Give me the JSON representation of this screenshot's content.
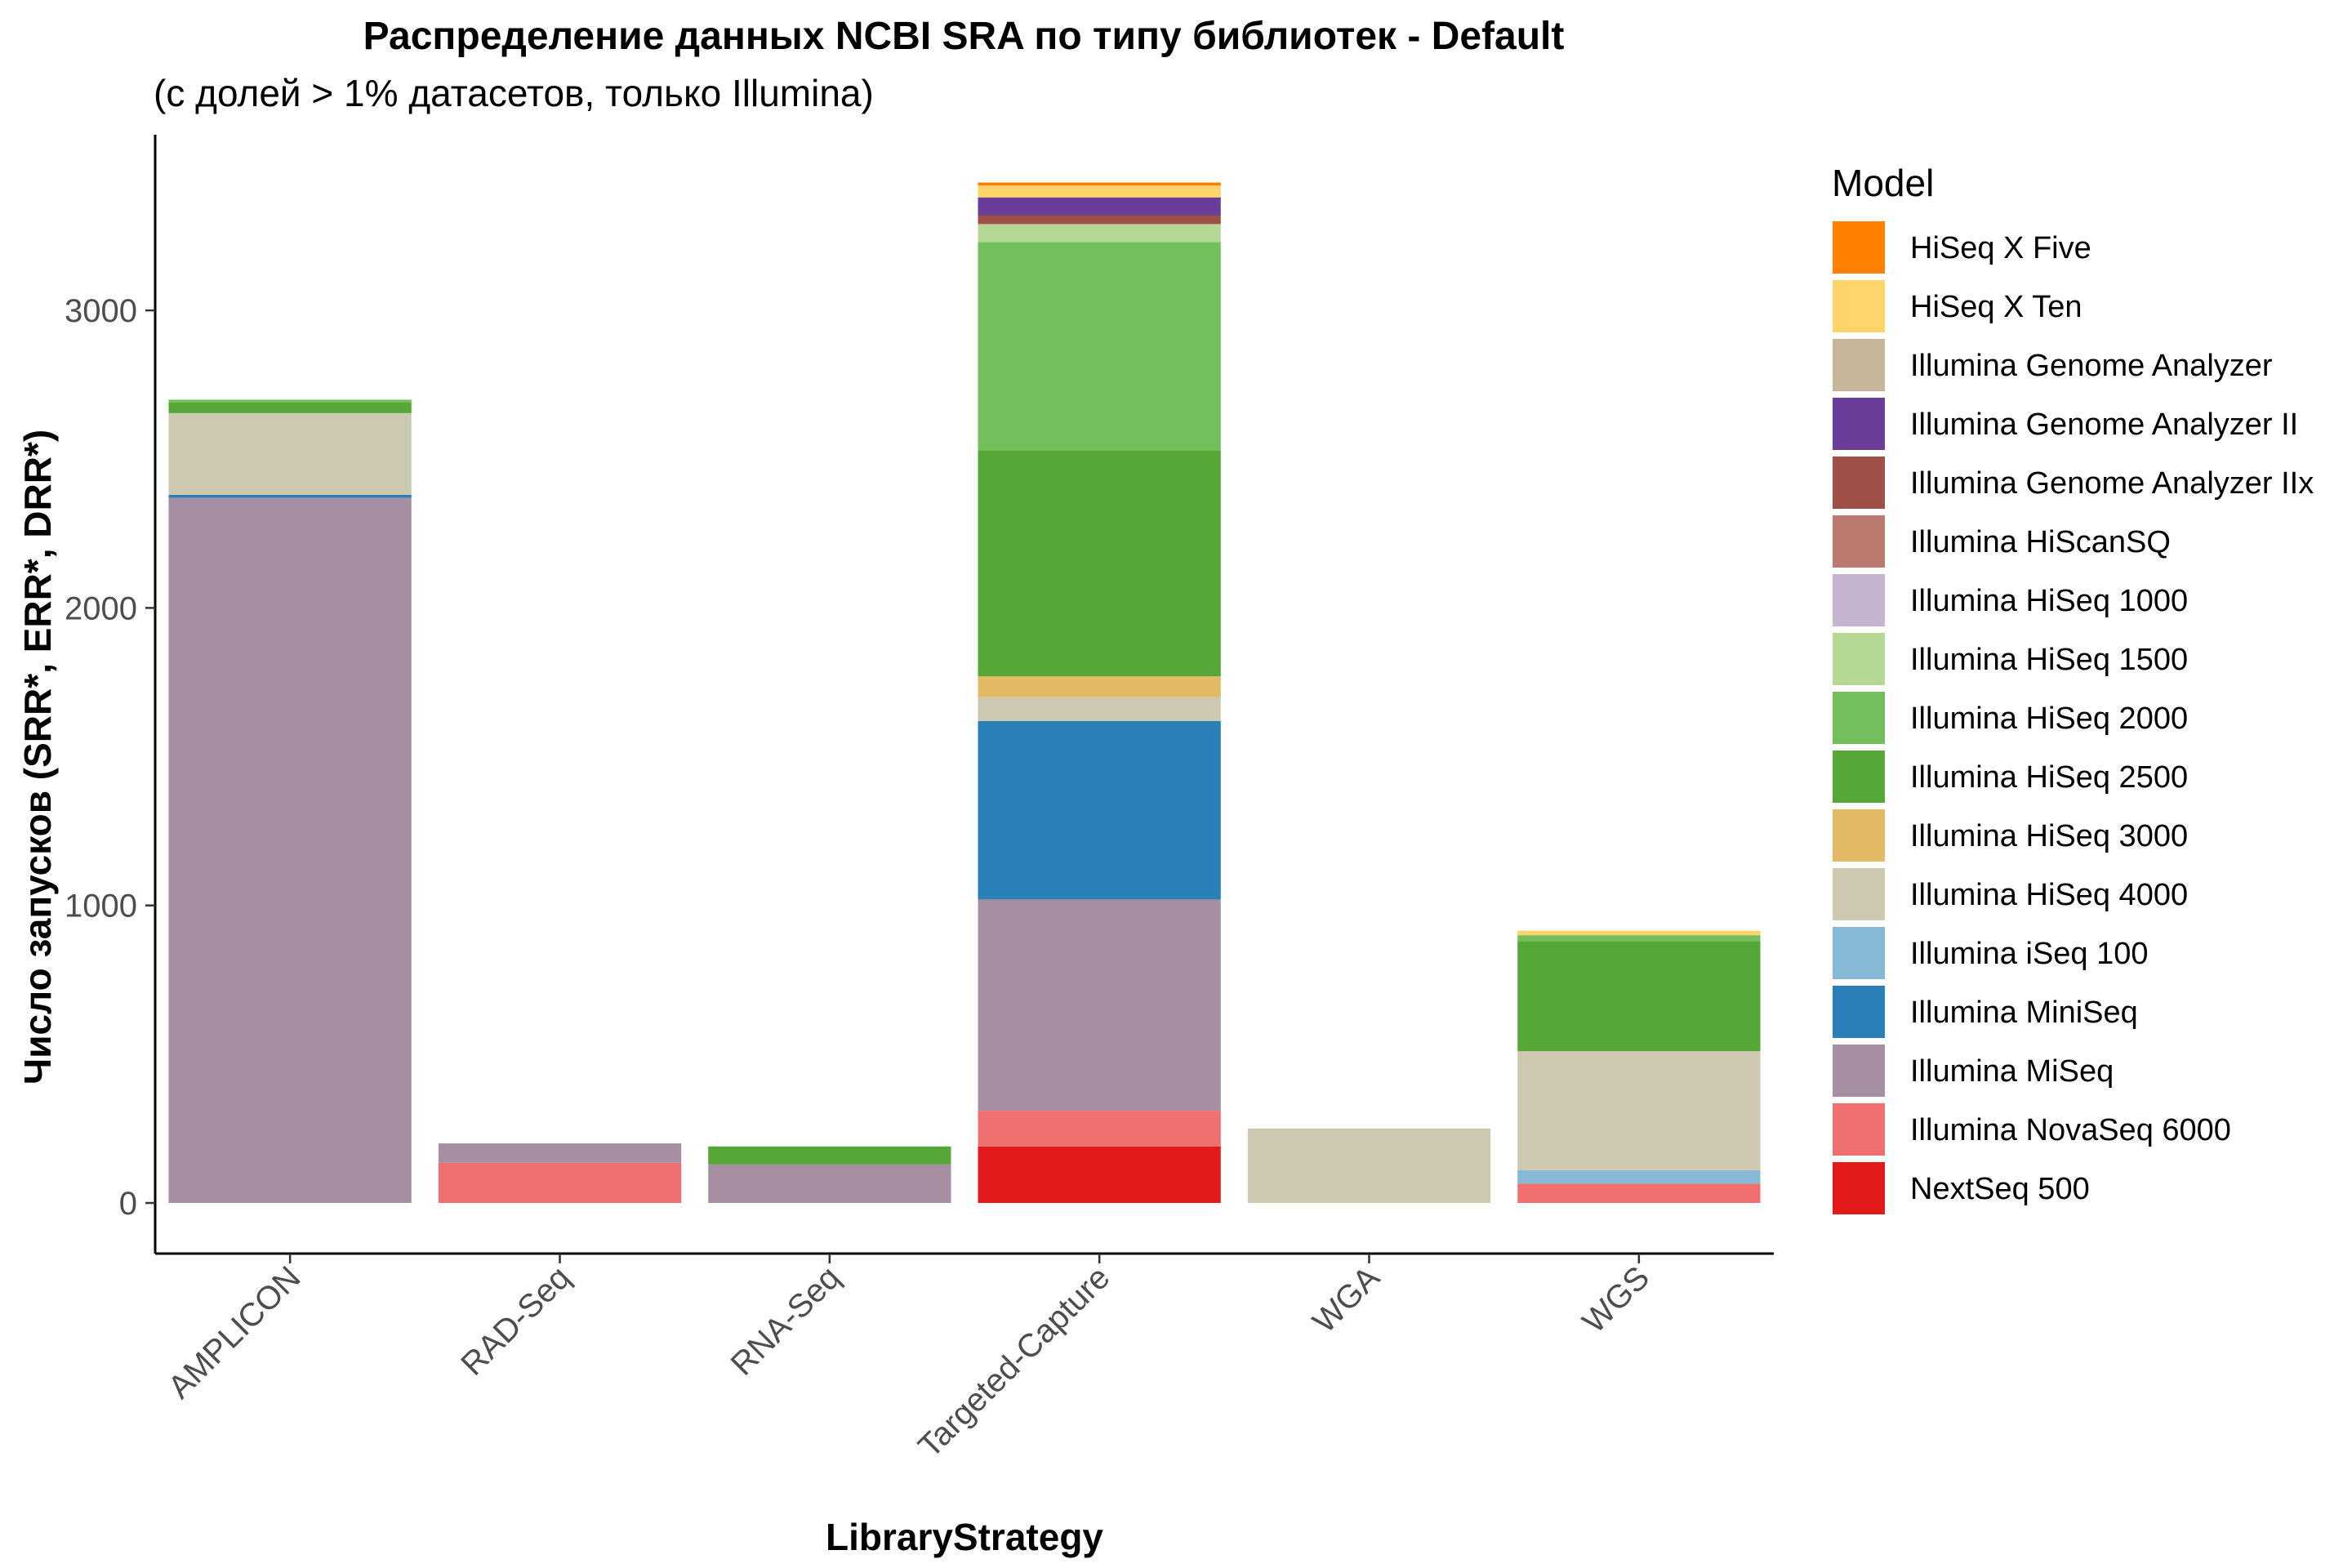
{
  "chart_data": {
    "type": "bar",
    "stacked": true,
    "title": "Распределение данных NCBI SRA по типу библиотек - Default",
    "subtitle": "(с долей > 1% датасетов, только Illumina)",
    "xlabel": "LibraryStrategy",
    "ylabel": "Число запусков (SRR*, ERR*, DRR*)",
    "categories": [
      "AMPLICON",
      "RAD-Seq",
      "RNA-Seq",
      "Targeted-Capture",
      "WGA",
      "WGS"
    ],
    "ylim": [
      0,
      3600
    ],
    "yticks": [
      0,
      1000,
      2000,
      3000
    ],
    "ytick_labels": [
      "0",
      "1000",
      "2000",
      "3000"
    ],
    "grid": false,
    "legend": {
      "title": "Model",
      "position": "right"
    },
    "series": [
      {
        "name": "HiSeq X Five",
        "color": "#FF7F00",
        "values": [
          0,
          0,
          0,
          10,
          0,
          0
        ]
      },
      {
        "name": "HiSeq X Ten",
        "color": "#FFD56B",
        "values": [
          0,
          0,
          0,
          40,
          0,
          15
        ]
      },
      {
        "name": "Illumina Genome Analyzer",
        "color": "#C7B699",
        "values": [
          0,
          0,
          0,
          0,
          0,
          0
        ]
      },
      {
        "name": "Illumina Genome Analyzer II",
        "color": "#6A3D9A",
        "values": [
          0,
          0,
          0,
          60,
          0,
          0
        ]
      },
      {
        "name": "Illumina Genome Analyzer IIx",
        "color": "#9E4F46",
        "values": [
          0,
          0,
          0,
          30,
          0,
          0
        ]
      },
      {
        "name": "Illumina HiScanSQ",
        "color": "#BA7A70",
        "values": [
          0,
          0,
          0,
          0,
          0,
          0
        ]
      },
      {
        "name": "Illumina HiSeq 1000",
        "color": "#C5B3CF",
        "values": [
          0,
          0,
          0,
          0,
          0,
          0
        ]
      },
      {
        "name": "Illumina HiSeq 1500",
        "color": "#B5D894",
        "values": [
          0,
          0,
          0,
          60,
          0,
          0
        ]
      },
      {
        "name": "Illumina HiSeq 2000",
        "color": "#73BF5C",
        "values": [
          10,
          0,
          0,
          700,
          0,
          20
        ]
      },
      {
        "name": "Illumina HiSeq 2500",
        "color": "#55A738",
        "values": [
          35,
          0,
          60,
          760,
          0,
          370
        ]
      },
      {
        "name": "Illumina HiSeq 3000",
        "color": "#E3BA64",
        "values": [
          0,
          0,
          0,
          70,
          0,
          0
        ]
      },
      {
        "name": "Illumina HiSeq 4000",
        "color": "#CDC9B1",
        "values": [
          275,
          0,
          0,
          80,
          250,
          400
        ]
      },
      {
        "name": "Illumina iSeq 100",
        "color": "#86B8D8",
        "values": [
          0,
          0,
          0,
          0,
          0,
          45
        ]
      },
      {
        "name": "Illumina MiniSeq",
        "color": "#2A7FB8",
        "values": [
          10,
          0,
          0,
          600,
          0,
          0
        ]
      },
      {
        "name": "Illumina MiSeq",
        "color": "#A68FA3",
        "values": [
          2370,
          65,
          130,
          710,
          0,
          0
        ]
      },
      {
        "name": "Illumina NovaSeq 6000",
        "color": "#F07070",
        "values": [
          0,
          135,
          0,
          120,
          0,
          65
        ]
      },
      {
        "name": "NextSeq 500",
        "color": "#E31A1C",
        "values": [
          0,
          0,
          0,
          190,
          0,
          0
        ]
      }
    ]
  }
}
